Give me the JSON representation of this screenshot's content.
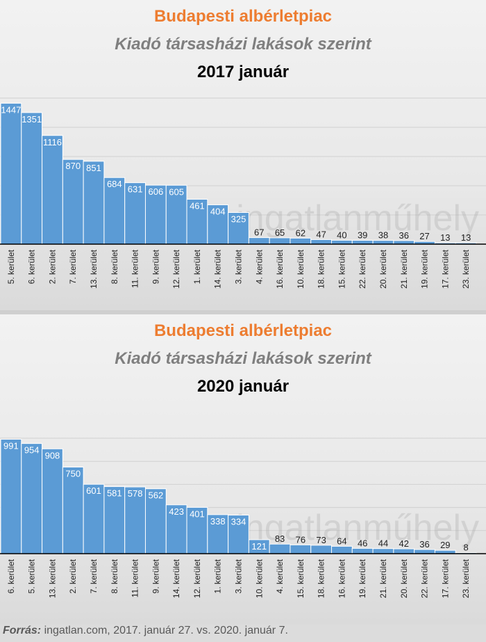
{
  "source_label": "Forrás:",
  "source_text": "ingatlan.com, 2017. január 27. vs. 2020. január 7.",
  "watermark": "ingatlanműhely",
  "colors": {
    "bar": "#5b9bd5",
    "title": "#ed7d31",
    "subtitle": "#7f7f7f"
  },
  "chart_data": [
    {
      "type": "bar",
      "title": "Budapesti albérletpiac",
      "subtitle": "Kiadó társasházi lakások szerint",
      "period": "2017 január",
      "ylim": [
        0,
        1500
      ],
      "categories": [
        "5. kerület",
        "6. kerület",
        "2. kerület",
        "7. kerület",
        "13. kerület",
        "8. kerület",
        "11. kerület",
        "9. kerület",
        "12. kerület",
        "1. kerület",
        "14. kerület",
        "3. kerület",
        "4. kerület",
        "16. kerület",
        "10. kerület",
        "18. kerület",
        "15. kerület",
        "22. kerület",
        "20. kerület",
        "21. kerület",
        "19. kerület",
        "17. kerület",
        "23. kerület"
      ],
      "values": [
        1447,
        1351,
        1116,
        870,
        851,
        684,
        631,
        606,
        605,
        461,
        404,
        325,
        67,
        65,
        62,
        47,
        40,
        39,
        38,
        36,
        27,
        13,
        13
      ]
    },
    {
      "type": "bar",
      "title": "Budapesti albérletpiac",
      "subtitle": "Kiadó társasházi lakások szerint",
      "period": "2020 január",
      "ylim": [
        0,
        1000
      ],
      "categories": [
        "6. kerület",
        "5. kerület",
        "13. kerület",
        "2. kerület",
        "7. kerület",
        "8. kerület",
        "11. kerület",
        "9. kerület",
        "14. kerület",
        "12. kerület",
        "1. kerület",
        "3. kerület",
        "10. kerület",
        "4. kerület",
        "15. kerület",
        "18. kerület",
        "16. kerület",
        "19. kerület",
        "21. kerület",
        "20. kerület",
        "22. kerület",
        "17. kerület",
        "23. kerület"
      ],
      "values": [
        991,
        954,
        908,
        750,
        601,
        581,
        578,
        562,
        423,
        401,
        338,
        334,
        121,
        83,
        76,
        73,
        64,
        46,
        44,
        42,
        36,
        29,
        8
      ]
    }
  ]
}
